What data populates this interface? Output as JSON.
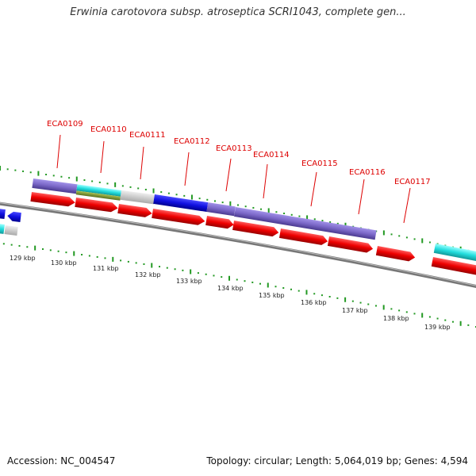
{
  "header": {
    "title": "Erwinia carotovora subsp. atroseptica SCRI1043, complete gen..."
  },
  "footer": {
    "accession": "Accession: NC_004547",
    "summary": "Topology: circular; Length: 5,064,019 bp; Genes: 4,594"
  },
  "gene_labels": [
    "ECA0109",
    "ECA0110",
    "ECA0111",
    "ECA0112",
    "ECA0113",
    "ECA0114",
    "ECA0115",
    "ECA0116",
    "ECA0117"
  ],
  "kbp_ticks": [
    "129 kbp",
    "130 kbp",
    "131 kbp",
    "132 kbp",
    "133 kbp",
    "134 kbp",
    "135 kbp",
    "136 kbp",
    "137 kbp",
    "138 kbp",
    "139 kbp"
  ],
  "colors": {
    "gene_label": "#dd0000",
    "cds_forward": "#ff0000",
    "feature_purple": "#7b68c8",
    "feature_cyan": "#33dddd",
    "feature_olive": "#7a9a30",
    "feature_gray": "#c8c8c8",
    "feature_blue": "#1010e0",
    "tick_green": "#229922",
    "backbone": "#777777"
  }
}
